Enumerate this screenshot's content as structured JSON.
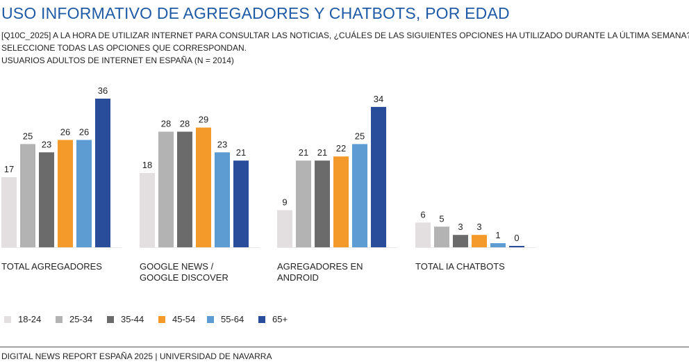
{
  "header": {
    "title": "USO INFORMATIVO DE AGREGADORES Y CHATBOTS, POR EDAD",
    "question": "[Q10C_2025] A LA HORA DE UTILIZAR INTERNET PARA CONSULTAR LAS NOTICIAS, ¿CUÁLES DE LAS SIGUIENTES OPCIONES HA UTILIZADO DURANTE LA ÚLTIMA SEMANA?",
    "instruction": "SELECCIONE TODAS LAS OPCIONES QUE CORRESPONDAN.",
    "base": "USUARIOS ADULTOS DE INTERNET EN ESPAÑA  (N = 2014)"
  },
  "chart_data": {
    "type": "bar",
    "categories": [
      [
        "TOTAL AGREGADORES"
      ],
      [
        "GOOGLE NEWS /",
        "GOOGLE DISCOVER"
      ],
      [
        "AGREGADORES EN",
        "ANDROID"
      ],
      [
        "TOTAL IA CHATBOTS"
      ]
    ],
    "series": [
      {
        "name": "18-24",
        "color": "#e3dfe0",
        "values": [
          17,
          18,
          9,
          6
        ]
      },
      {
        "name": "25-34",
        "color": "#b3b3b3",
        "values": [
          25,
          28,
          21,
          5
        ]
      },
      {
        "name": "35-44",
        "color": "#6b6b6b",
        "values": [
          23,
          28,
          21,
          3
        ]
      },
      {
        "name": "45-54",
        "color": "#f39a2b",
        "values": [
          26,
          29,
          22,
          3
        ]
      },
      {
        "name": "55-64",
        "color": "#5d9bd3",
        "values": [
          26,
          23,
          25,
          1
        ]
      },
      {
        "name": "65+",
        "color": "#2a4d9b",
        "values": [
          36,
          21,
          34,
          0
        ]
      }
    ],
    "ylim": [
      0,
      36
    ],
    "grid": false,
    "legend_position": "bottom-left"
  },
  "footer": {
    "source": "DIGITAL NEWS REPORT ESPAÑA 2025 | UNIVERSIDAD DE NAVARRA"
  }
}
